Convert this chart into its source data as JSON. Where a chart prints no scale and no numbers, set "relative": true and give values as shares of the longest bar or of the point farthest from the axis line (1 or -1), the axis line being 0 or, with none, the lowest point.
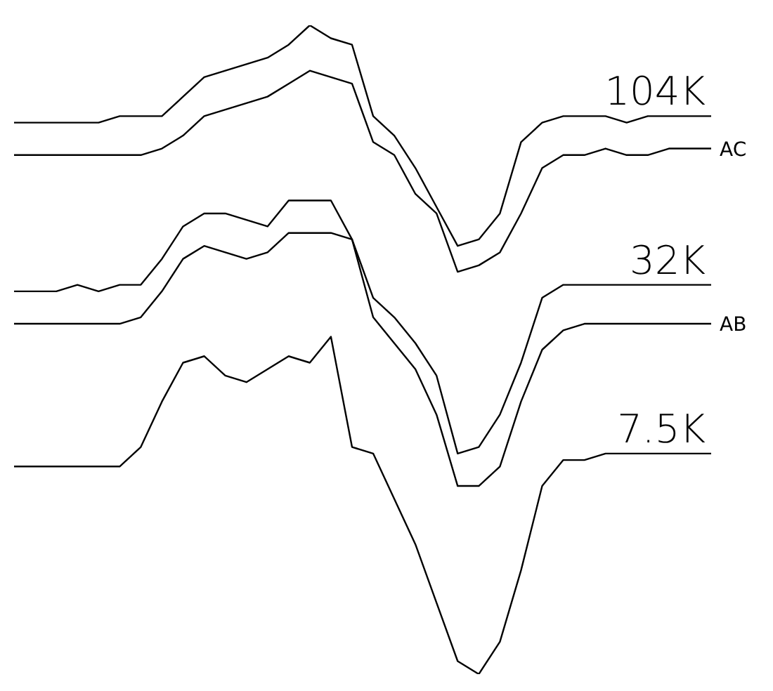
{
  "chart_data": {
    "type": "line",
    "relative": true,
    "categories": [
      null,
      null,
      null,
      null,
      null,
      null,
      null,
      null,
      null,
      null,
      null,
      null,
      null,
      null,
      null,
      null,
      null,
      null,
      null,
      null,
      null,
      null,
      null,
      null,
      null,
      null,
      null,
      null,
      null,
      null,
      null,
      null,
      null,
      null
    ],
    "series": [
      {
        "name": "104K",
        "color": "#000000",
        "values": [
          0.85,
          0.85,
          0.85,
          0.85,
          0.85,
          0.86,
          0.86,
          0.86,
          0.89,
          0.92,
          0.93,
          0.94,
          0.95,
          0.97,
          1,
          0.98,
          0.97,
          0.86,
          0.83,
          0.78,
          0.72,
          0.66,
          0.67,
          0.71,
          0.82,
          0.85,
          0.86,
          0.86,
          0.86,
          0.85,
          0.86,
          0.86,
          0.86,
          0.86
        ]
      },
      {
        "name": "AC",
        "color": "#000000",
        "values": [
          0.8,
          0.8,
          0.8,
          0.8,
          0.8,
          0.8,
          0.8,
          0.81,
          0.83,
          0.86,
          0.87,
          0.88,
          0.89,
          0.91,
          0.93,
          0.92,
          0.91,
          0.82,
          0.8,
          0.74,
          0.71,
          0.62,
          0.63,
          0.65,
          0.71,
          0.78,
          0.8,
          0.8,
          0.81,
          0.8,
          0.8,
          0.81,
          0.81,
          0.81
        ]
      },
      {
        "name": "32K",
        "color": "#000000",
        "values": [
          0.59,
          0.59,
          0.59,
          0.6,
          0.59,
          0.6,
          0.6,
          0.64,
          0.69,
          0.71,
          0.71,
          0.7,
          0.69,
          0.73,
          0.73,
          0.73,
          0.67,
          0.58,
          0.55,
          0.51,
          0.46,
          0.34,
          0.35,
          0.4,
          0.48,
          0.58,
          0.6,
          0.6,
          0.6,
          0.6,
          0.6,
          0.6,
          0.6,
          0.6
        ]
      },
      {
        "name": "AB",
        "color": "#000000",
        "values": [
          0.54,
          0.54,
          0.54,
          0.54,
          0.54,
          0.54,
          0.55,
          0.59,
          0.64,
          0.66,
          0.65,
          0.64,
          0.65,
          0.68,
          0.68,
          0.68,
          0.67,
          0.55,
          0.51,
          0.47,
          0.4,
          0.29,
          0.29,
          0.32,
          0.42,
          0.5,
          0.53,
          0.54,
          0.54,
          0.54,
          0.54,
          0.54,
          0.54,
          0.54
        ]
      },
      {
        "name": "7.5K",
        "color": "#000000",
        "values": [
          0.32,
          0.32,
          0.32,
          0.32,
          0.32,
          0.32,
          0.35,
          0.42,
          0.48,
          0.49,
          0.46,
          0.45,
          0.47,
          0.49,
          0.48,
          0.52,
          0.35,
          0.34,
          0.27,
          0.2,
          0.11,
          0.02,
          0,
          0.05,
          0.16,
          0.29,
          0.33,
          0.33,
          0.34,
          0.34,
          0.34,
          0.34,
          0.34,
          0.34
        ]
      }
    ]
  }
}
